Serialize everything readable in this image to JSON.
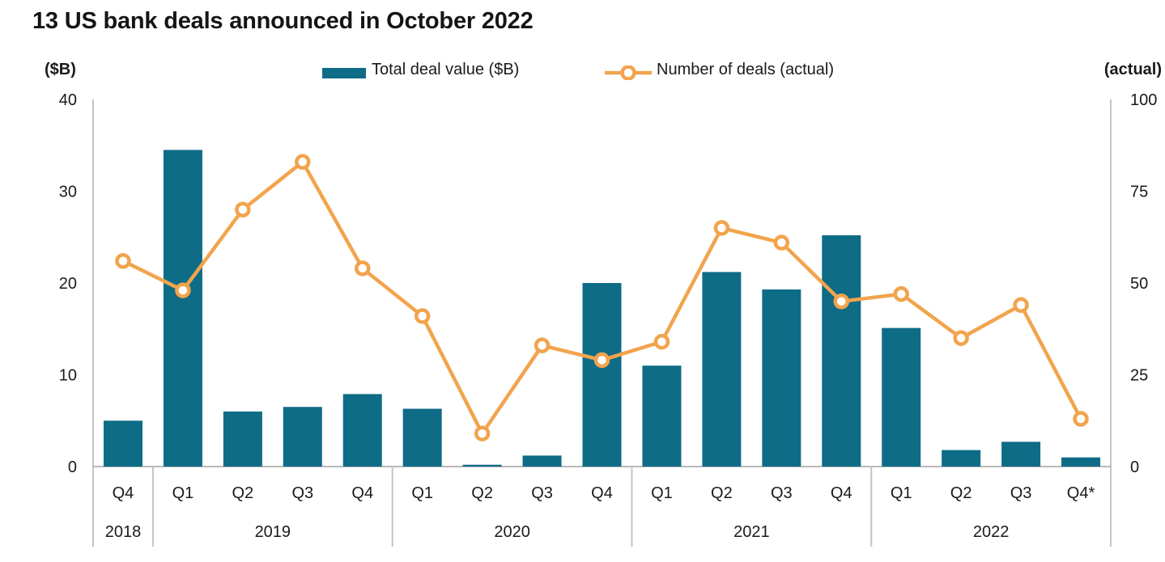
{
  "title": "13 US bank deals announced in October 2022",
  "left_axis": {
    "unit": "($B)",
    "ticks": [
      40,
      30,
      20,
      10,
      0
    ]
  },
  "right_axis": {
    "unit": "(actual)",
    "ticks": [
      100,
      75,
      50,
      25,
      0
    ]
  },
  "legend": [
    {
      "label": "Total deal value ($B)",
      "type": "bar"
    },
    {
      "label": "Number of deals (actual)",
      "type": "line"
    }
  ],
  "colors": {
    "bar": "#0e6c86",
    "line": "#f2a44d",
    "marker_fill": "#ffffff",
    "axis": "#c4c4c4",
    "baseline": "#b9b9b9",
    "text": "#1a1a1a"
  },
  "chart_data": {
    "type": "bar+line combo",
    "title": "13 US bank deals announced in October 2022",
    "categories": [
      "Q4",
      "Q1",
      "Q2",
      "Q3",
      "Q4",
      "Q1",
      "Q2",
      "Q3",
      "Q4",
      "Q1",
      "Q2",
      "Q3",
      "Q4",
      "Q1",
      "Q2",
      "Q3",
      "Q4*"
    ],
    "year_groups": [
      {
        "label": "2018",
        "span": 1
      },
      {
        "label": "2019",
        "span": 4
      },
      {
        "label": "2020",
        "span": 4
      },
      {
        "label": "2021",
        "span": 4
      },
      {
        "label": "2022",
        "span": 4
      }
    ],
    "series": [
      {
        "name": "Total deal value ($B)",
        "type": "bar",
        "axis": "left",
        "values": [
          5.0,
          34.5,
          6.0,
          6.5,
          7.9,
          6.3,
          0.2,
          1.2,
          20.0,
          11.0,
          21.2,
          19.3,
          25.2,
          15.1,
          1.8,
          2.7,
          1.0
        ]
      },
      {
        "name": "Number of deals (actual)",
        "type": "line",
        "axis": "right",
        "values": [
          56,
          48,
          70,
          83,
          54,
          41,
          9,
          33,
          29,
          34,
          65,
          61,
          45,
          47,
          35,
          44,
          13
        ]
      }
    ],
    "left_ylim": [
      0,
      40
    ],
    "right_ylim": [
      0,
      100
    ],
    "grid": false,
    "legend_position": "top"
  }
}
